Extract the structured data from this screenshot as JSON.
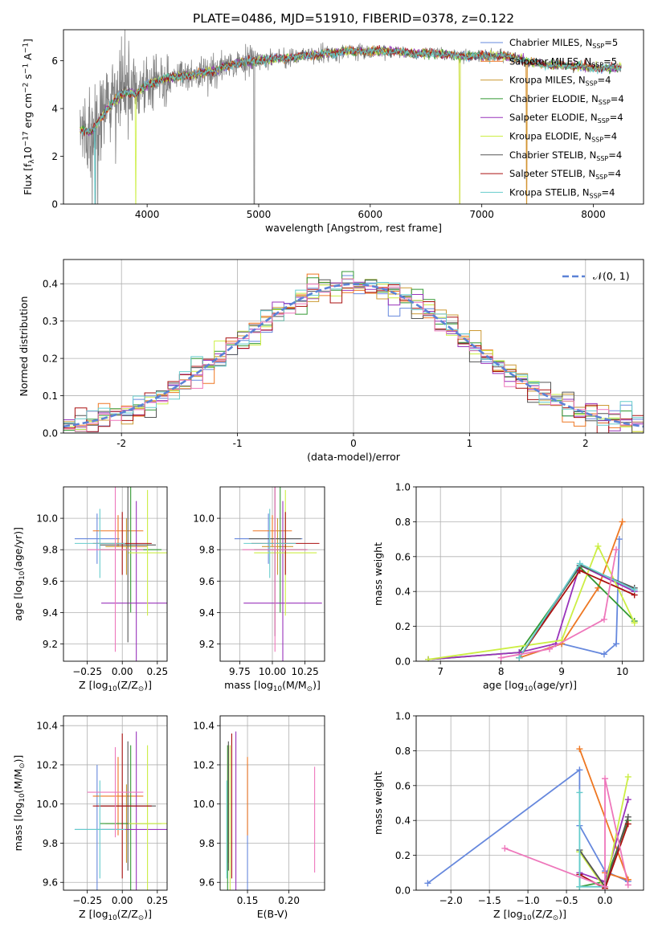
{
  "colors": {
    "Chabrier MILES": "#6688dd",
    "Salpeter MILES": "#ee7722",
    "Kroupa MILES": "#cc9933",
    "Chabrier ELODIE": "#339933",
    "Salpeter ELODIE": "#9933bb",
    "Kroupa ELODIE": "#ccee44",
    "Chabrier STELIB": "#555555",
    "Salpeter STELIB": "#aa1111",
    "Kroupa STELIB": "#66cccc",
    "pink": "#ee77bb",
    "data": "#808080"
  },
  "chart_data": [
    {
      "id": "spectrum",
      "type": "line",
      "title": "PLATE=0486, MJD=51910, FIBERID=0378, z=0.122",
      "xlabel": "wavelength [Angstrom, rest frame]",
      "ylabel_parts": [
        "Flux [f",
        "λ",
        "10",
        "−17",
        " erg cm",
        "−2",
        " s",
        "−1",
        " A",
        "−1",
        "]"
      ],
      "xlim": [
        3250,
        8450
      ],
      "ylim": [
        0,
        7.3
      ],
      "xticks": [
        4000,
        5000,
        6000,
        7000,
        8000
      ],
      "yticks": [
        0,
        2,
        4,
        6
      ],
      "grid": false,
      "legend_position": "right",
      "legend": [
        {
          "name": "Chabrier MILES",
          "nssp": "5"
        },
        {
          "name": "Salpeter MILES",
          "nssp": "5"
        },
        {
          "name": "Kroupa MILES",
          "nssp": "4"
        },
        {
          "name": "Chabrier ELODIE",
          "nssp": "4"
        },
        {
          "name": "Salpeter ELODIE",
          "nssp": "4"
        },
        {
          "name": "Kroupa ELODIE",
          "nssp": "4"
        },
        {
          "name": "Chabrier STELIB",
          "nssp": "4"
        },
        {
          "name": "Salpeter STELIB",
          "nssp": "4"
        },
        {
          "name": "Kroupa STELIB",
          "nssp": "4"
        }
      ],
      "continuum_x": [
        3400,
        3500,
        3600,
        3700,
        3800,
        3900,
        4000,
        4200,
        4400,
        4600,
        4800,
        5000,
        5200,
        5400,
        5600,
        5800,
        6000,
        6200,
        6400,
        6600,
        6800,
        7000,
        7200,
        7400,
        7600,
        7800,
        8000,
        8200
      ],
      "continuum_y": [
        3.1,
        3.0,
        3.7,
        4.3,
        4.7,
        4.6,
        5.0,
        5.3,
        5.4,
        5.6,
        5.9,
        6.0,
        6.1,
        6.2,
        6.3,
        6.4,
        6.4,
        6.4,
        6.3,
        6.3,
        6.2,
        6.2,
        6.2,
        6.0,
        5.8,
        5.8,
        5.7,
        5.7
      ]
    },
    {
      "id": "residuals",
      "type": "histogram",
      "xlabel": "(data-model)/error",
      "ylabel": "Normed distribution",
      "xlim": [
        -2.5,
        2.5
      ],
      "ylim": [
        0,
        0.465
      ],
      "xticks": [
        -2,
        -1,
        0,
        1,
        2
      ],
      "yticks": [
        0.0,
        0.1,
        0.2,
        0.3,
        0.4
      ],
      "grid": true,
      "legend_position": "top-right",
      "legend": "𝒩(0, 1)",
      "bin_width": 0.1
    },
    {
      "id": "age-vs-Z",
      "type": "errorbar",
      "xlabel_parts": [
        "Z [log",
        "10",
        "(Z/Z",
        "⊙",
        ")]"
      ],
      "ylabel_parts": [
        "age  [log",
        "10",
        "(age/yr)]"
      ],
      "xlim": [
        -0.42,
        0.32
      ],
      "ylim": [
        9.09,
        10.2
      ],
      "xticks": [
        -0.25,
        0.0,
        0.25
      ],
      "xticklabels": [
        "−0.25",
        "0.00",
        "0.25"
      ],
      "yticks": [
        9.2,
        9.4,
        9.6,
        9.8,
        10.0
      ],
      "grid": true,
      "points": [
        {
          "c": "Chabrier MILES",
          "x": -0.18,
          "xe": 0.16,
          "y": 9.87,
          "ye": 0.16
        },
        {
          "c": "Salpeter MILES",
          "x": -0.03,
          "xe": 0.18,
          "y": 9.92,
          "ye": 0.1
        },
        {
          "c": "Kroupa MILES",
          "x": 0.03,
          "xe": 0.15,
          "y": 9.82,
          "ye": 0.18
        },
        {
          "c": "Chabrier ELODIE",
          "x": 0.06,
          "xe": 0.22,
          "y": 9.8,
          "ye": 0.4
        },
        {
          "c": "Salpeter ELODIE",
          "x": 0.1,
          "xe": 0.25,
          "y": 9.46,
          "ye": 0.65
        },
        {
          "c": "Kroupa ELODIE",
          "x": 0.18,
          "xe": 0.14,
          "y": 9.78,
          "ye": 0.4
        },
        {
          "c": "Chabrier STELIB",
          "x": 0.04,
          "xe": 0.2,
          "y": 9.83,
          "ye": 0.62
        },
        {
          "c": "Salpeter STELIB",
          "x": 0.0,
          "xe": 0.21,
          "y": 9.84,
          "ye": 0.2
        },
        {
          "c": "Kroupa STELIB",
          "x": -0.16,
          "xe": 0.18,
          "y": 9.84,
          "ye": 0.22
        },
        {
          "c": "pink",
          "x": -0.05,
          "xe": 0.2,
          "y": 9.8,
          "ye": 0.65
        }
      ]
    },
    {
      "id": "age-vs-mass",
      "type": "errorbar",
      "xlabel_parts": [
        "mass [log",
        "10",
        "(M/M",
        "⊙",
        ")]"
      ],
      "ylabel": "",
      "xlim": [
        9.6,
        10.4
      ],
      "ylim": [
        9.09,
        10.2
      ],
      "xticks": [
        9.75,
        10.0,
        10.25
      ],
      "xticklabels": [
        "9.75",
        "10.00",
        "10.25"
      ],
      "yticks": [
        9.2,
        9.4,
        9.6,
        9.8,
        10.0
      ],
      "grid": true,
      "points": [
        {
          "c": "Chabrier MILES",
          "x": 9.97,
          "xe": 0.26,
          "y": 9.87,
          "ye": 0.16
        },
        {
          "c": "Salpeter MILES",
          "x": 10.0,
          "xe": 0.15,
          "y": 9.92,
          "ye": 0.1
        },
        {
          "c": "Kroupa MILES",
          "x": 10.04,
          "xe": 0.12,
          "y": 9.82,
          "ye": 0.18
        },
        {
          "c": "Chabrier ELODIE",
          "x": 10.06,
          "xe": 0.2,
          "y": 9.8,
          "ye": 0.4
        },
        {
          "c": "Salpeter ELODIE",
          "x": 10.08,
          "xe": 0.3,
          "y": 9.46,
          "ye": 0.65
        },
        {
          "c": "Kroupa ELODIE",
          "x": 10.1,
          "xe": 0.24,
          "y": 9.78,
          "ye": 0.4
        },
        {
          "c": "Chabrier STELIB",
          "x": 10.02,
          "xe": 0.2,
          "y": 9.87,
          "ye": 0.62
        },
        {
          "c": "Salpeter STELIB",
          "x": 10.1,
          "xe": 0.26,
          "y": 9.84,
          "ye": 0.2
        },
        {
          "c": "Kroupa STELIB",
          "x": 9.98,
          "xe": 0.2,
          "y": 9.84,
          "ye": 0.22
        },
        {
          "c": "pink",
          "x": 10.02,
          "xe": 0.25,
          "y": 9.8,
          "ye": 0.65
        }
      ]
    },
    {
      "id": "mass-weight-vs-age",
      "type": "line",
      "xlabel_parts": [
        "age  [log",
        "10",
        "(age/yr)]"
      ],
      "ylabel": "mass weight",
      "xlim": [
        6.6,
        10.35
      ],
      "ylim": [
        0,
        1.0
      ],
      "xticks": [
        7,
        8,
        9,
        10
      ],
      "xticklabels": [
        "7",
        "8",
        "9",
        "10"
      ],
      "yticks": [
        0.0,
        0.2,
        0.4,
        0.6,
        0.8,
        1.0
      ],
      "grid": true,
      "series": [
        {
          "c": "Chabrier MILES",
          "x": [
            8.3,
            9.0,
            9.7,
            9.9,
            9.95
          ],
          "y": [
            0.02,
            0.1,
            0.04,
            0.1,
            0.7
          ]
        },
        {
          "c": "Salpeter MILES",
          "x": [
            8.3,
            9.0,
            9.6,
            10.0
          ],
          "y": [
            0.02,
            0.1,
            0.42,
            0.8
          ]
        },
        {
          "c": "Chabrier ELODIE",
          "x": [
            6.8,
            8.3,
            9.3,
            10.2
          ],
          "y": [
            0.01,
            0.05,
            0.54,
            0.23
          ]
        },
        {
          "c": "Salpeter ELODIE",
          "x": [
            6.8,
            8.3,
            8.9,
            9.3,
            10.2
          ],
          "y": [
            0.01,
            0.05,
            0.1,
            0.55,
            0.4
          ]
        },
        {
          "c": "Kroupa ELODIE",
          "x": [
            6.8,
            9.0,
            9.6,
            10.2
          ],
          "y": [
            0.01,
            0.12,
            0.66,
            0.22
          ]
        },
        {
          "c": "Chabrier STELIB",
          "x": [
            8.3,
            9.3,
            10.2
          ],
          "y": [
            0.02,
            0.55,
            0.42
          ]
        },
        {
          "c": "Salpeter STELIB",
          "x": [
            8.3,
            9.3,
            10.2
          ],
          "y": [
            0.02,
            0.52,
            0.38
          ]
        },
        {
          "c": "Kroupa STELIB",
          "x": [
            8.3,
            9.3,
            10.2
          ],
          "y": [
            0.02,
            0.56,
            0.41
          ]
        },
        {
          "c": "pink",
          "x": [
            8.0,
            8.8,
            9.7,
            9.9
          ],
          "y": [
            0.02,
            0.07,
            0.24,
            0.64
          ]
        }
      ]
    },
    {
      "id": "mass-vs-Z",
      "type": "errorbar",
      "xlabel_parts": [
        "Z [log",
        "10",
        "(Z/Z",
        "⊙",
        ")]"
      ],
      "ylabel_parts": [
        "mass [log",
        "10",
        "(M/M",
        "⊙",
        ")]"
      ],
      "xlim": [
        -0.42,
        0.32
      ],
      "ylim": [
        9.56,
        10.45
      ],
      "xticks": [
        -0.25,
        0.0,
        0.25
      ],
      "xticklabels": [
        "−0.25",
        "0.00",
        "0.25"
      ],
      "yticks": [
        9.6,
        9.8,
        10.0,
        10.2,
        10.4
      ],
      "grid": true,
      "points": [
        {
          "c": "Chabrier MILES",
          "x": -0.18,
          "xe": 0.16,
          "y": 9.87,
          "ye": 0.33
        },
        {
          "c": "Salpeter MILES",
          "x": -0.03,
          "xe": 0.18,
          "y": 10.04,
          "ye": 0.2
        },
        {
          "c": "Kroupa MILES",
          "x": 0.03,
          "xe": 0.15,
          "y": 9.9,
          "ye": 0.2
        },
        {
          "c": "Chabrier ELODIE",
          "x": 0.06,
          "xe": 0.22,
          "y": 9.9,
          "ye": 0.4
        },
        {
          "c": "Salpeter ELODIE",
          "x": 0.1,
          "xe": 0.25,
          "y": 9.87,
          "ye": 0.5
        },
        {
          "c": "Kroupa ELODIE",
          "x": 0.18,
          "xe": 0.14,
          "y": 9.9,
          "ye": 0.4
        },
        {
          "c": "Chabrier STELIB",
          "x": 0.04,
          "xe": 0.2,
          "y": 9.99,
          "ye": 0.33
        },
        {
          "c": "Salpeter STELIB",
          "x": 0.0,
          "xe": 0.21,
          "y": 9.99,
          "ye": 0.37
        },
        {
          "c": "Kroupa STELIB",
          "x": -0.16,
          "xe": 0.18,
          "y": 9.87,
          "ye": 0.25
        },
        {
          "c": "pink",
          "x": -0.05,
          "xe": 0.2,
          "y": 10.06,
          "ye": 0.23
        }
      ]
    },
    {
      "id": "mass-vs-EBV",
      "type": "errorbar",
      "xlabel": "E(B-V)",
      "ylabel": "",
      "xlim": [
        0.117,
        0.243
      ],
      "ylim": [
        9.56,
        10.45
      ],
      "xticks": [
        0.15,
        0.2
      ],
      "xticklabels": [
        "0.15",
        "0.20"
      ],
      "yticks": [
        9.6,
        9.8,
        10.0,
        10.2,
        10.4
      ],
      "grid": true,
      "points": [
        {
          "c": "Chabrier MILES",
          "x": 0.15,
          "xe": 0,
          "y": 9.87,
          "ye": 0.33
        },
        {
          "c": "Salpeter MILES",
          "x": 0.15,
          "xe": 0,
          "y": 10.04,
          "ye": 0.2
        },
        {
          "c": "Kroupa MILES",
          "x": 0.127,
          "xe": 0,
          "y": 10.0,
          "ye": 0.3
        },
        {
          "c": "Chabrier ELODIE",
          "x": 0.126,
          "xe": 0,
          "y": 9.9,
          "ye": 0.4
        },
        {
          "c": "Salpeter ELODIE",
          "x": 0.136,
          "xe": 0,
          "y": 9.87,
          "ye": 0.5
        },
        {
          "c": "Kroupa ELODIE",
          "x": 0.129,
          "xe": 0,
          "y": 9.9,
          "ye": 0.4
        },
        {
          "c": "Chabrier STELIB",
          "x": 0.127,
          "xe": 0,
          "y": 9.99,
          "ye": 0.33
        },
        {
          "c": "Salpeter STELIB",
          "x": 0.131,
          "xe": 0,
          "y": 9.99,
          "ye": 0.37
        },
        {
          "c": "Kroupa STELIB",
          "x": 0.125,
          "xe": 0,
          "y": 9.87,
          "ye": 0.25
        },
        {
          "c": "pink",
          "x": 0.231,
          "xe": 0,
          "y": 9.92,
          "ye": 0.27
        }
      ]
    },
    {
      "id": "mass-weight-vs-Z",
      "type": "line",
      "xlabel_parts": [
        "Z [log",
        "10",
        "(Z/Z",
        "⊙",
        ")]"
      ],
      "ylabel": "mass weight",
      "xlim": [
        -2.45,
        0.5
      ],
      "ylim": [
        0,
        1.0
      ],
      "xticks": [
        -2.0,
        -1.5,
        -1.0,
        -0.5,
        0.0
      ],
      "xticklabels": [
        "−2.0",
        "−1.5",
        "−1.0",
        "−0.5",
        "0.0"
      ],
      "yticks": [
        0.0,
        0.2,
        0.4,
        0.6,
        0.8,
        1.0
      ],
      "grid": true,
      "series": [
        {
          "c": "Chabrier MILES",
          "x": [
            -2.3,
            -0.33,
            -0.33,
            0.0,
            0.3
          ],
          "y": [
            0.04,
            0.69,
            0.37,
            0.11,
            0.05
          ]
        },
        {
          "c": "Salpeter MILES",
          "x": [
            -0.33,
            0.3,
            0.0,
            0.3
          ],
          "y": [
            0.81,
            0.06,
            0.1,
            0.06
          ]
        },
        {
          "c": "Chabrier ELODIE",
          "x": [
            -0.33,
            -0.33,
            0.0,
            0.3
          ],
          "y": [
            0.22,
            0.02,
            0.05,
            0.4
          ]
        },
        {
          "c": "Salpeter ELODIE",
          "x": [
            -0.33,
            0.0,
            0.3
          ],
          "y": [
            0.1,
            0.05,
            0.52
          ]
        },
        {
          "c": "Kroupa ELODIE",
          "x": [
            -0.33,
            0.0,
            0.3
          ],
          "y": [
            0.22,
            0.01,
            0.65
          ]
        },
        {
          "c": "Chabrier STELIB",
          "x": [
            -0.33,
            0.0,
            0.3
          ],
          "y": [
            0.23,
            0.02,
            0.42
          ]
        },
        {
          "c": "Salpeter STELIB",
          "x": [
            -0.33,
            0.0,
            0.3
          ],
          "y": [
            0.09,
            0.01,
            0.38
          ]
        },
        {
          "c": "Kroupa STELIB",
          "x": [
            -0.33,
            -0.33,
            0.0
          ],
          "y": [
            0.56,
            0.02,
            0.02
          ]
        },
        {
          "c": "pink",
          "x": [
            -1.3,
            0.0,
            0.0,
            0.3
          ],
          "y": [
            0.24,
            0.02,
            0.64,
            0.03
          ]
        }
      ]
    }
  ]
}
